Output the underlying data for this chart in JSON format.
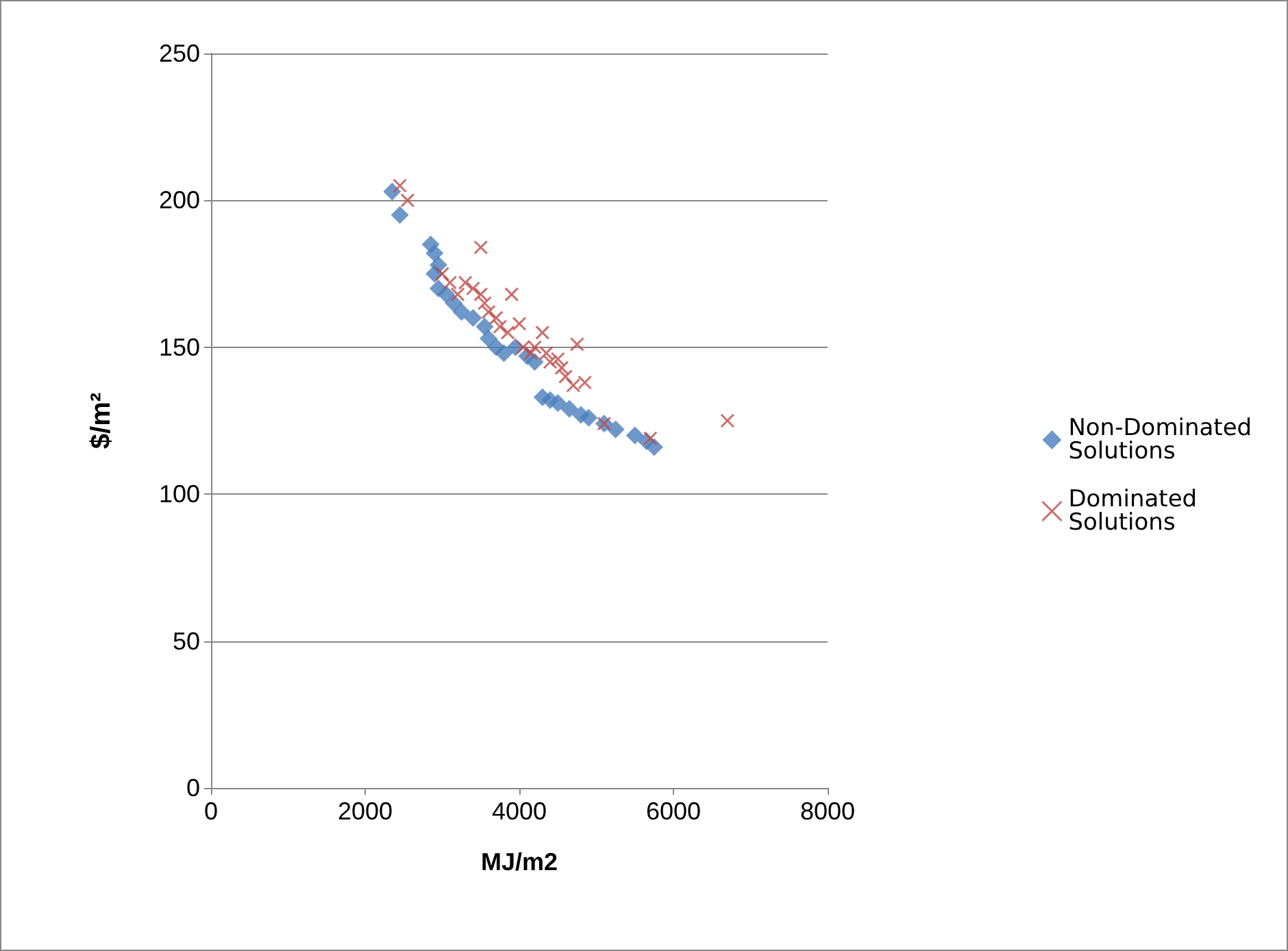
{
  "chart_data": {
    "type": "scatter",
    "xlabel": "MJ/m2",
    "ylabel": "$/m²",
    "xlim": [
      0,
      8000
    ],
    "xticks": [
      0,
      2000,
      4000,
      6000,
      8000
    ],
    "ylim": [
      0,
      250
    ],
    "yticks": [
      0,
      50,
      100,
      150,
      200,
      250
    ],
    "grid": "y",
    "legend": "right",
    "series": [
      {
        "name": "Non-Dominated Solutions",
        "color": "#4a7ebb",
        "marker": "diamond",
        "x": [
          2350,
          2450,
          2850,
          2900,
          2950,
          2900,
          2950,
          3050,
          3150,
          3250,
          3400,
          3550,
          3600,
          3700,
          3800,
          3950,
          4100,
          4200,
          4300,
          4400,
          4500,
          4650,
          4800,
          4900,
          5100,
          5250,
          5500,
          5650,
          5750
        ],
        "values": [
          203,
          195,
          185,
          182,
          178,
          175,
          170,
          168,
          165,
          162,
          160,
          157,
          153,
          150,
          148,
          150,
          147,
          145,
          133,
          132,
          131,
          129,
          127,
          126,
          124,
          122,
          120,
          118,
          116
        ]
      },
      {
        "name": "Dominated Solutions",
        "color": "#be4b48",
        "marker": "cross",
        "x": [
          2450,
          2550,
          3000,
          3100,
          3200,
          3300,
          3400,
          3500,
          3500,
          3550,
          3600,
          3700,
          3750,
          3850,
          3900,
          4000,
          4050,
          4150,
          4200,
          4300,
          4350,
          4400,
          4500,
          4550,
          4600,
          4700,
          4750,
          4850,
          5100,
          5700,
          6700
        ],
        "values": [
          205,
          200,
          175,
          172,
          168,
          172,
          170,
          184,
          168,
          165,
          162,
          160,
          157,
          155,
          168,
          158,
          150,
          148,
          150,
          155,
          148,
          145,
          146,
          143,
          140,
          137,
          151,
          138,
          124,
          119,
          125
        ]
      }
    ]
  }
}
